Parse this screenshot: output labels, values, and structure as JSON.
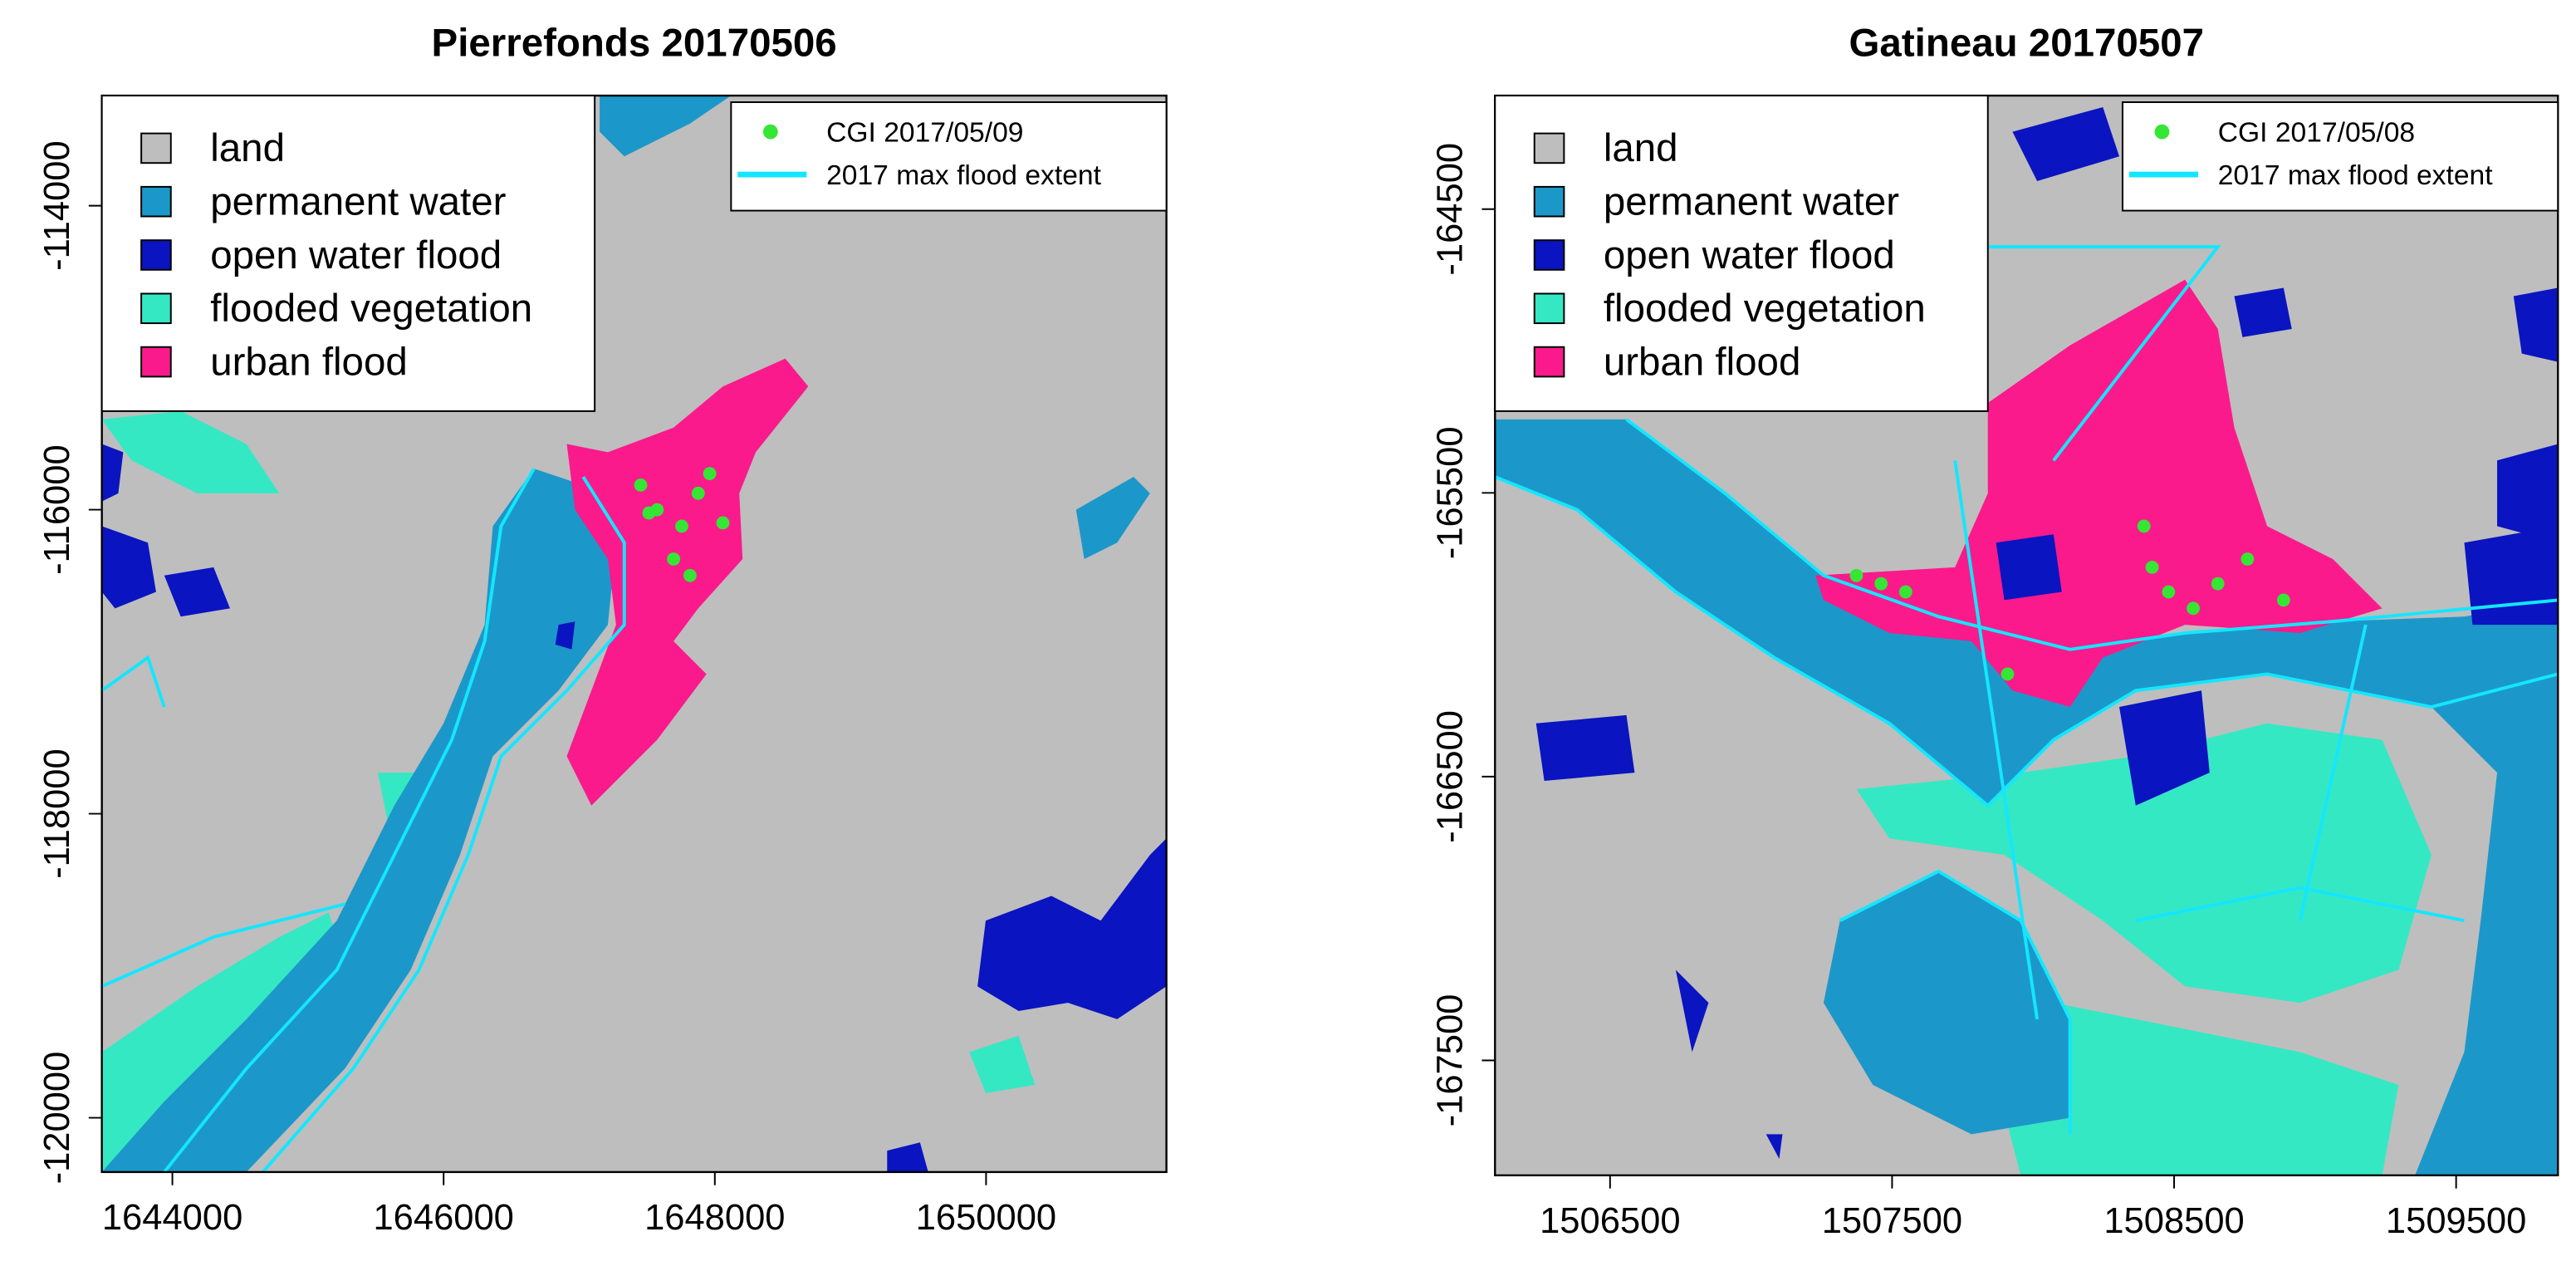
{
  "panels": [
    {
      "title": "Pierrefonds 20170506",
      "xlim": [
        1643480,
        1651330
      ],
      "ylim": [
        -120357,
        -113276
      ],
      "xticks": [
        1644000,
        1646000,
        1648000,
        1650000
      ],
      "yticks": [
        -114000,
        -116000,
        -118000,
        -120000
      ],
      "legend": [
        {
          "label": "land",
          "color": "#bebebe"
        },
        {
          "label": "permanent water",
          "color": "#1b98c9"
        },
        {
          "label": "open water flood",
          "color": "#0a14c0"
        },
        {
          "label": "flooded vegetation",
          "color": "#35e8c4"
        },
        {
          "label": "urban flood",
          "color": "#fa1a8c"
        }
      ],
      "inset_legend": [
        {
          "label": "CGI 2017/05/09",
          "color": "#35e635"
        },
        {
          "label": "2017 max flood extent",
          "color": "#14e6ff"
        }
      ]
    },
    {
      "title": "Gatineau 20170507",
      "xlim": [
        1506092,
        1509861
      ],
      "ylim": [
        -167905,
        -164100
      ],
      "xticks": [
        1506500,
        1507500,
        1508500,
        1509500
      ],
      "yticks": [
        -164500,
        -165500,
        -166500,
        -167500
      ],
      "legend": [
        {
          "label": "land",
          "color": "#bebebe"
        },
        {
          "label": "permanent water",
          "color": "#1b98c9"
        },
        {
          "label": "open water flood",
          "color": "#0a14c0"
        },
        {
          "label": "flooded vegetation",
          "color": "#35e8c4"
        },
        {
          "label": "urban flood",
          "color": "#fa1a8c"
        }
      ],
      "inset_legend": [
        {
          "label": "CGI 2017/05/08",
          "color": "#35e635"
        },
        {
          "label": "2017 max flood extent",
          "color": "#14e6ff"
        }
      ]
    }
  ]
}
